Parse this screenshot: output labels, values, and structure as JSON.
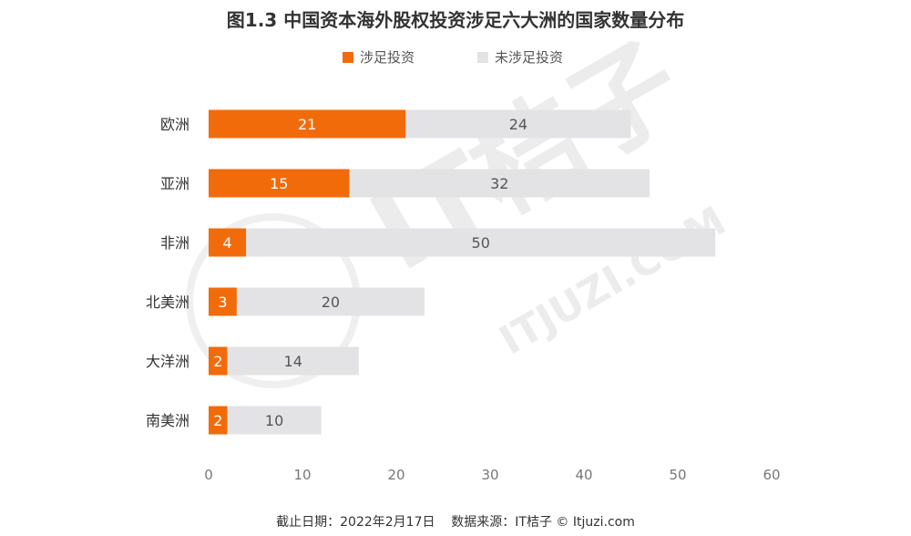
{
  "chart_data": {
    "type": "bar",
    "orientation": "horizontal",
    "stacked": true,
    "title": "图1.3 中国资本海外股权投资涉足六大洲的国家数量分布",
    "categories": [
      "欧洲",
      "亚洲",
      "非洲",
      "北美洲",
      "大洋洲",
      "南美洲"
    ],
    "series": [
      {
        "name": "涉足投资",
        "values": [
          21,
          15,
          4,
          3,
          2,
          2
        ],
        "color": "#f26b0a"
      },
      {
        "name": "未涉足投资",
        "values": [
          24,
          32,
          50,
          20,
          14,
          10
        ],
        "color": "#e3e3e5"
      }
    ],
    "xlim": [
      0,
      60
    ],
    "xticks": [
      0,
      10,
      20,
      30,
      40,
      50,
      60
    ],
    "grid": false,
    "legend": "top-center"
  },
  "footer": {
    "source": "截止日期：2022年2月17日    数据来源：IT桔子 © Itjuzi.com"
  },
  "watermark": {
    "brand": "IT桔子",
    "site": "ITJUZI.COM"
  }
}
